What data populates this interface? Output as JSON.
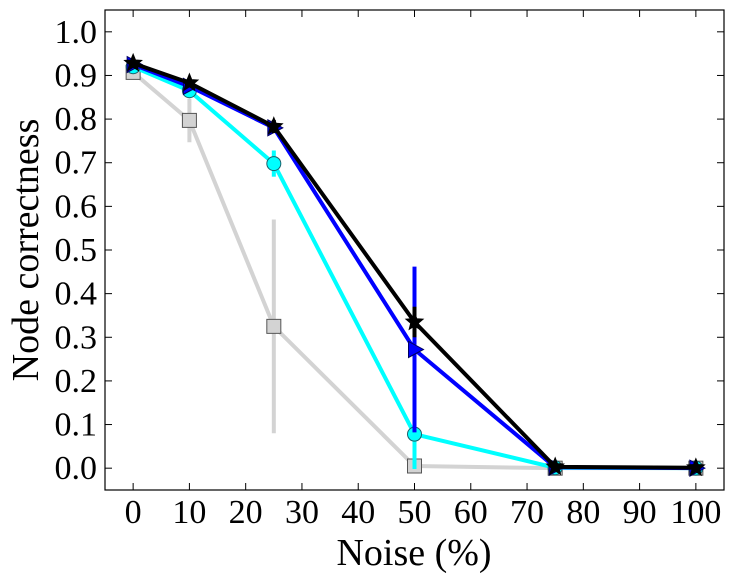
{
  "chart_data": {
    "type": "line",
    "xlabel": "Noise (%)",
    "ylabel": "Node correctness",
    "xlim": [
      -5,
      105
    ],
    "ylim": [
      -0.05,
      1.05
    ],
    "xticks": [
      0,
      10,
      20,
      30,
      40,
      50,
      60,
      70,
      80,
      90,
      100
    ],
    "xtick_labels": [
      "0",
      "10",
      "20",
      "30",
      "40",
      "50",
      "60",
      "70",
      "80",
      "90",
      "100"
    ],
    "yticks": [
      0.0,
      0.1,
      0.2,
      0.3,
      0.4,
      0.5,
      0.6,
      0.7,
      0.8,
      0.9,
      1.0
    ],
    "ytick_labels": [
      "0.0",
      "0.1",
      "0.2",
      "0.3",
      "0.4",
      "0.5",
      "0.6",
      "0.7",
      "0.8",
      "0.9",
      "1.0"
    ],
    "grid": false,
    "legend": "none",
    "series": [
      {
        "color": "#d3d3d3",
        "marker": "square",
        "x": [
          0,
          10,
          25,
          50,
          75,
          100
        ],
        "y": [
          0.907,
          0.797,
          0.325,
          0.005,
          0.0,
          0.0
        ],
        "err": [
          0.01,
          0.05,
          0.245,
          0.005,
          0.002,
          0.0
        ]
      },
      {
        "color": "#00ffff",
        "marker": "circle",
        "x": [
          0,
          10,
          25,
          50,
          75,
          100
        ],
        "y": [
          0.92,
          0.865,
          0.698,
          0.078,
          0.001,
          0.0
        ],
        "err": [
          0.005,
          0.01,
          0.03,
          0.08,
          0.001,
          0.0
        ]
      },
      {
        "color": "#0000ff",
        "marker": "triangle-right",
        "x": [
          0,
          10,
          25,
          50,
          75,
          100
        ],
        "y": [
          0.925,
          0.875,
          0.78,
          0.272,
          0.002,
          0.0
        ],
        "err": [
          0.005,
          0.008,
          0.01,
          0.19,
          0.001,
          0.0
        ]
      },
      {
        "color": "#000000",
        "marker": "star",
        "x": [
          0,
          10,
          25,
          50,
          75,
          100
        ],
        "y": [
          0.928,
          0.883,
          0.783,
          0.335,
          0.003,
          0.001
        ],
        "err": [
          0.004,
          0.007,
          0.015,
          0.035,
          0.001,
          0.0
        ]
      }
    ]
  }
}
